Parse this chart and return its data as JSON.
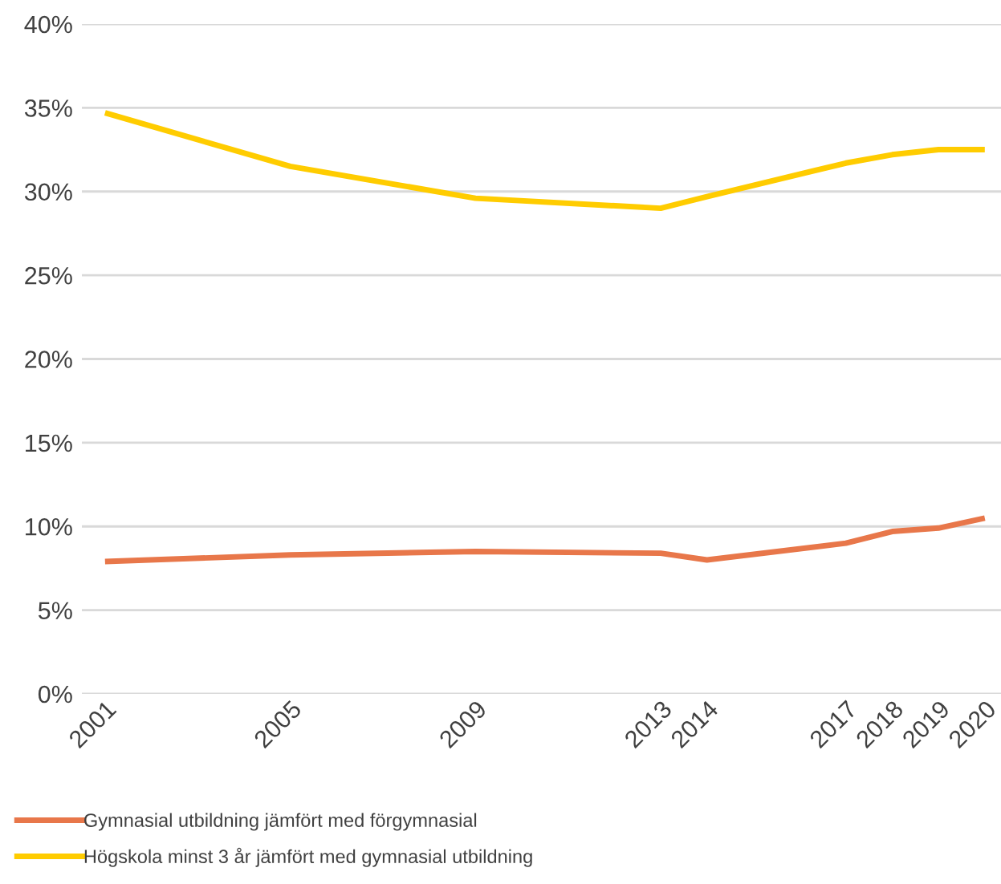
{
  "chart_data": {
    "type": "line",
    "x": [
      2001,
      2005,
      2009,
      2013,
      2014,
      2017,
      2018,
      2019,
      2020
    ],
    "series": [
      {
        "name": "Gymnasial utbildning jämfört med förgymnasial",
        "color": "#e8774a",
        "values": [
          7.9,
          8.3,
          8.5,
          8.4,
          8.0,
          9.0,
          9.7,
          9.9,
          10.5
        ]
      },
      {
        "name": "Högskola minst 3 år jämfört med gymnasial utbildning",
        "color": "#ffcc00",
        "values": [
          34.7,
          31.5,
          29.6,
          29.0,
          29.7,
          31.7,
          32.2,
          32.5,
          32.5
        ]
      }
    ],
    "xlim": [
      2000.5,
      2020.35
    ],
    "xticks": [
      2001,
      2005,
      2009,
      2013,
      2014,
      2017,
      2018,
      2019,
      2020
    ],
    "ylim": [
      0,
      40
    ],
    "yticks": [
      {
        "value": 0,
        "label": "0%"
      },
      {
        "value": 5,
        "label": "5%"
      },
      {
        "value": 10,
        "label": "10%"
      },
      {
        "value": 15,
        "label": "15%"
      },
      {
        "value": 20,
        "label": "20%"
      },
      {
        "value": 25,
        "label": "25%"
      },
      {
        "value": 30,
        "label": "30%"
      },
      {
        "value": 35,
        "label": "35%"
      },
      {
        "value": 40,
        "label": "40%"
      }
    ],
    "grid": "y",
    "legend": "bottom left",
    "marker": "none",
    "line_style": "solid"
  }
}
